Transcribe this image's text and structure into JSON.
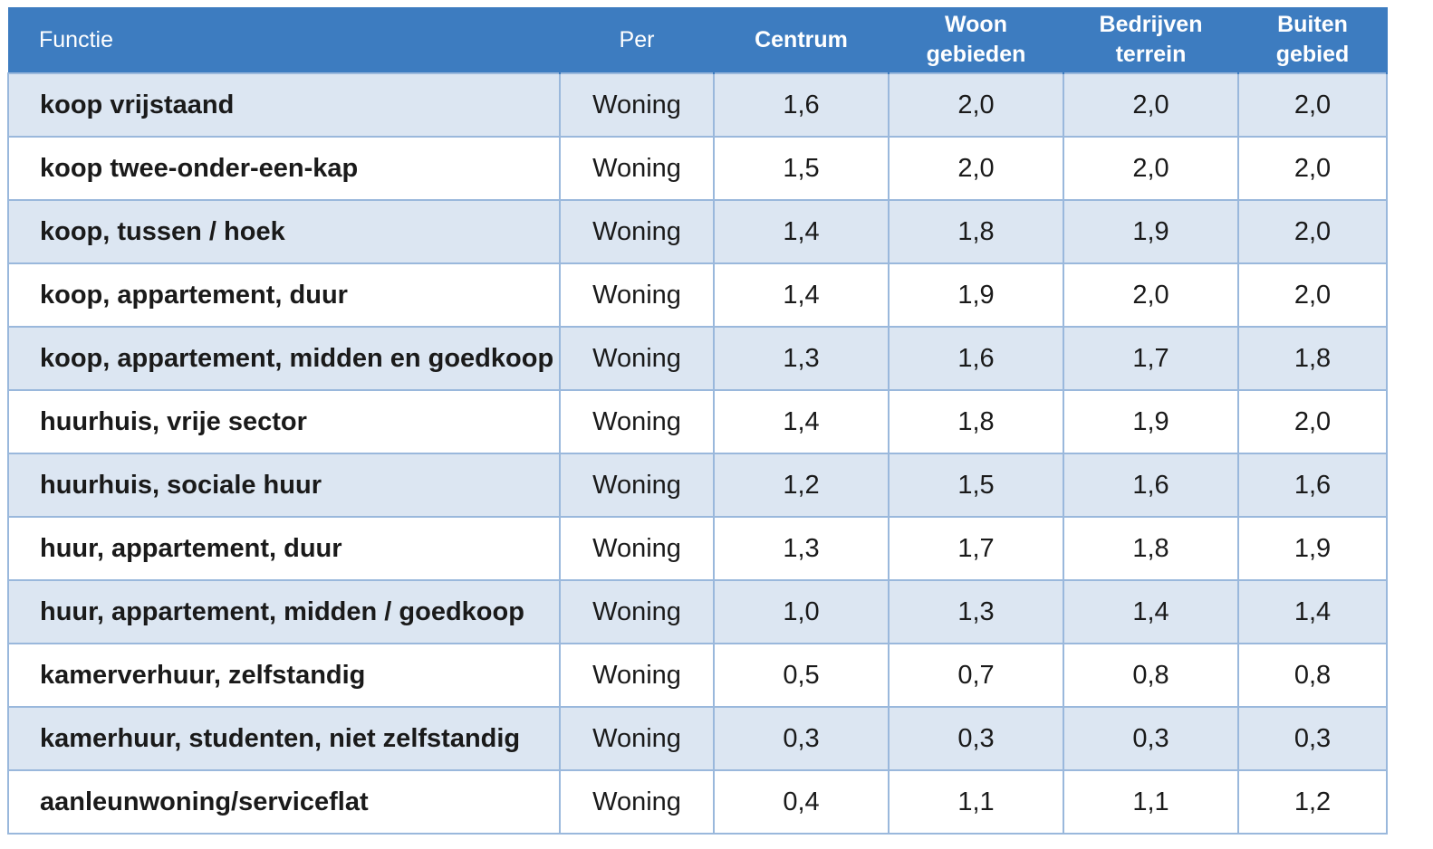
{
  "table": {
    "headers": [
      "Functie",
      "Per",
      "Centrum",
      "Woon\ngebieden",
      "Bedrijven\nterrein",
      "Buiten\ngebied"
    ],
    "rows": [
      [
        "koop vrijstaand",
        "Woning",
        "1,6",
        "2,0",
        "2,0",
        "2,0"
      ],
      [
        "koop twee-onder-een-kap",
        "Woning",
        "1,5",
        "2,0",
        "2,0",
        "2,0"
      ],
      [
        "koop, tussen / hoek",
        "Woning",
        "1,4",
        "1,8",
        "1,9",
        "2,0"
      ],
      [
        "koop, appartement, duur",
        "Woning",
        "1,4",
        "1,9",
        "2,0",
        "2,0"
      ],
      [
        "koop, appartement, midden en goedkoop",
        "Woning",
        "1,3",
        "1,6",
        "1,7",
        "1,8"
      ],
      [
        "huurhuis, vrije sector",
        "Woning",
        "1,4",
        "1,8",
        "1,9",
        "2,0"
      ],
      [
        "huurhuis, sociale huur",
        "Woning",
        "1,2",
        "1,5",
        "1,6",
        "1,6"
      ],
      [
        "huur, appartement, duur",
        "Woning",
        "1,3",
        "1,7",
        "1,8",
        "1,9"
      ],
      [
        "huur, appartement, midden / goedkoop",
        "Woning",
        "1,0",
        "1,3",
        "1,4",
        "1,4"
      ],
      [
        "kamerverhuur, zelfstandig",
        "Woning",
        "0,5",
        "0,7",
        "0,8",
        "0,8"
      ],
      [
        "kamerhuur, studenten, niet zelfstandig",
        "Woning",
        "0,3",
        "0,3",
        "0,3",
        "0,3"
      ],
      [
        "aanleunwoning/serviceflat",
        "Woning",
        "0,4",
        "1,1",
        "1,1",
        "1,2"
      ]
    ]
  }
}
